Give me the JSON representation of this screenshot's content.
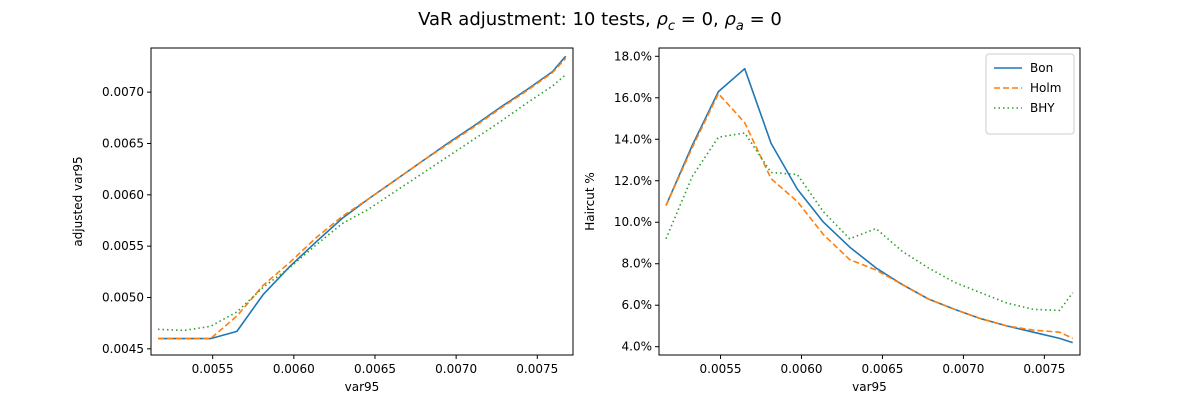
{
  "figure": {
    "suptitle_prefix": "VaR adjustment: 10 tests, ",
    "suptitle_rho_c_symbol": "ρ",
    "suptitle_rho_c_sub": "c",
    "suptitle_rho_c_value": " = 0, ",
    "suptitle_rho_a_symbol": "ρ",
    "suptitle_rho_a_sub": "a",
    "suptitle_rho_a_value": " = 0"
  },
  "chart_data": [
    {
      "type": "line",
      "title": "",
      "xlabel": "var95",
      "ylabel": "adjusted var95",
      "xlim": [
        0.00512,
        0.00772
      ],
      "ylim": [
        0.00444,
        0.00743
      ],
      "xticks": [
        0.0055,
        0.006,
        0.0065,
        0.007,
        0.0075
      ],
      "xtick_labels": [
        "0.0055",
        "0.0060",
        "0.0065",
        "0.0070",
        "0.0075"
      ],
      "yticks": [
        0.0045,
        0.005,
        0.0055,
        0.006,
        0.0065,
        0.007
      ],
      "ytick_labels": [
        "0.0045",
        "0.0050",
        "0.0055",
        "0.0060",
        "0.0065",
        "0.0070"
      ],
      "grid": false,
      "legend": "none",
      "x": [
        0.005163,
        0.005325,
        0.005487,
        0.005649,
        0.005812,
        0.005974,
        0.006136,
        0.006298,
        0.00646,
        0.006622,
        0.006784,
        0.006946,
        0.007108,
        0.00727,
        0.007432,
        0.007594,
        0.007675
      ],
      "series": [
        {
          "name": "Bon",
          "color": "#1f77b4",
          "dash": "solid",
          "values": [
            0.0046,
            0.0046,
            0.0046,
            0.00467,
            0.00503,
            0.0053,
            0.00554,
            0.00577,
            0.00596,
            0.00614,
            0.00632,
            0.0065,
            0.00667,
            0.00685,
            0.00702,
            0.0072,
            0.00735
          ]
        },
        {
          "name": "Holm",
          "color": "#ff7f0e",
          "dash": "dashed",
          "values": [
            0.0046,
            0.0046,
            0.0046,
            0.00482,
            0.00512,
            0.00534,
            0.00558,
            0.00579,
            0.00596,
            0.00614,
            0.00632,
            0.00649,
            0.00666,
            0.00684,
            0.00701,
            0.00719,
            0.00733
          ]
        },
        {
          "name": "BHY",
          "color": "#2ca02c",
          "dash": "dotted",
          "values": [
            0.00469,
            0.00468,
            0.00472,
            0.00486,
            0.0051,
            0.00529,
            0.00551,
            0.00572,
            0.00586,
            0.00603,
            0.0062,
            0.00637,
            0.00654,
            0.00671,
            0.00689,
            0.00706,
            0.00717
          ]
        }
      ]
    },
    {
      "type": "line",
      "title": "",
      "xlabel": "var95",
      "ylabel": "Haircut %",
      "xlim": [
        0.00512,
        0.00772
      ],
      "ylim": [
        3.6,
        18.4
      ],
      "xticks": [
        0.0055,
        0.006,
        0.0065,
        0.007,
        0.0075
      ],
      "xtick_labels": [
        "0.0055",
        "0.0060",
        "0.0065",
        "0.0070",
        "0.0075"
      ],
      "yticks": [
        4,
        6,
        8,
        10,
        12,
        14,
        16,
        18
      ],
      "ytick_labels": [
        "4.0%",
        "6.0%",
        "8.0%",
        "10.0%",
        "12.0%",
        "14.0%",
        "16.0%",
        "18.0%"
      ],
      "grid": false,
      "legend": "top-right",
      "x": [
        0.005163,
        0.005325,
        0.005487,
        0.005649,
        0.005812,
        0.005974,
        0.006136,
        0.006298,
        0.00646,
        0.006622,
        0.006784,
        0.006946,
        0.007108,
        0.00727,
        0.007432,
        0.007594,
        0.007675
      ],
      "series": [
        {
          "name": "Bon",
          "color": "#1f77b4",
          "dash": "solid",
          "values": [
            10.8,
            13.7,
            16.3,
            17.4,
            13.8,
            11.6,
            10.0,
            8.8,
            7.8,
            7.0,
            6.3,
            5.8,
            5.35,
            5.0,
            4.7,
            4.4,
            4.2
          ]
        },
        {
          "name": "Holm",
          "color": "#ff7f0e",
          "dash": "dashed",
          "values": [
            10.8,
            13.6,
            16.2,
            14.8,
            12.1,
            11.0,
            9.4,
            8.2,
            7.7,
            7.0,
            6.3,
            5.8,
            5.35,
            5.0,
            4.8,
            4.7,
            4.4
          ]
        },
        {
          "name": "BHY",
          "color": "#2ca02c",
          "dash": "dotted",
          "values": [
            9.2,
            12.2,
            14.1,
            14.3,
            12.4,
            12.3,
            10.5,
            9.2,
            9.7,
            8.6,
            7.8,
            7.1,
            6.6,
            6.1,
            5.8,
            5.75,
            6.6
          ]
        }
      ]
    }
  ]
}
